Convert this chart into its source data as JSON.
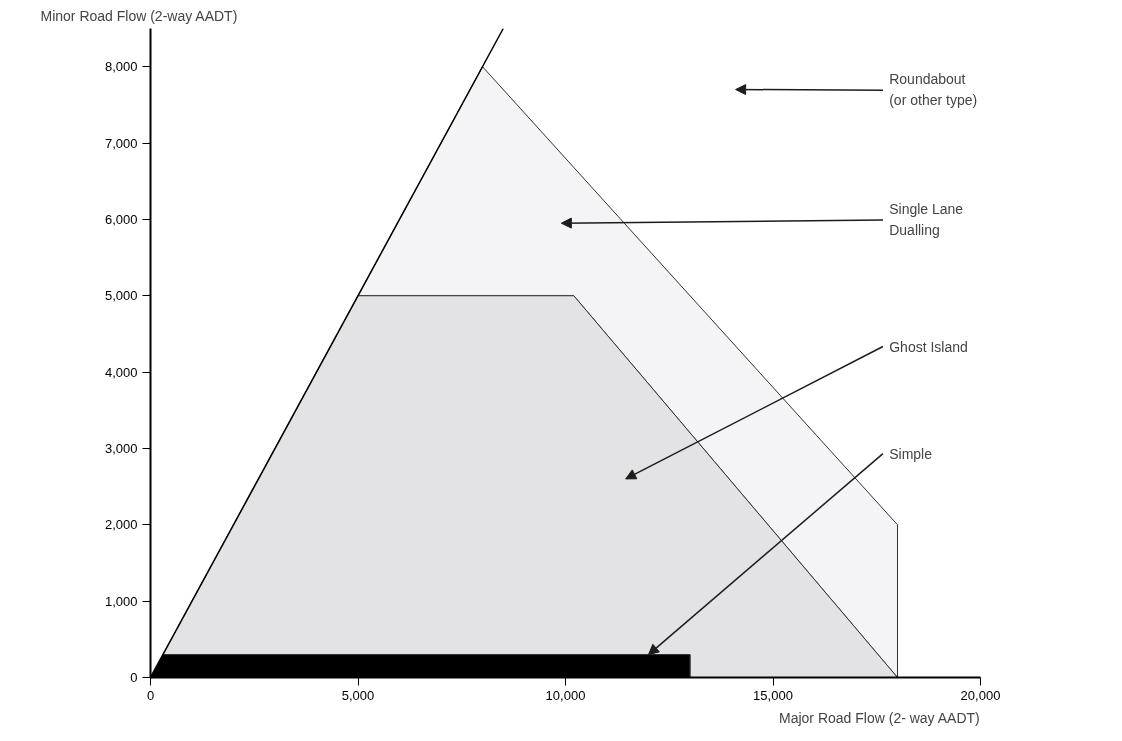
{
  "chart_data": {
    "type": "area",
    "xlabel": "Major Road Flow (2- way AADT)",
    "ylabel": "Minor Road Flow (2-way AADT)",
    "xlim": [
      0,
      20000
    ],
    "ylim": [
      0,
      8500
    ],
    "xticks": [
      0,
      {
        "value": 5000,
        "label": "5,000"
      },
      {
        "value": 10000,
        "label": "10,000"
      },
      {
        "value": 15000,
        "label": "15,000"
      },
      {
        "value": 20000,
        "label": "20,000"
      }
    ],
    "yticks": [
      0,
      {
        "value": 1000,
        "label": "1,000"
      },
      {
        "value": 2000,
        "label": "2,000"
      },
      {
        "value": 3000,
        "label": "3,000"
      },
      {
        "value": 4000,
        "label": "4,000"
      },
      {
        "value": 5000,
        "label": "5,000"
      },
      {
        "value": 6000,
        "label": "6,000"
      },
      {
        "value": 7000,
        "label": "7,000"
      },
      {
        "value": 8000,
        "label": "8,000"
      }
    ],
    "grid": false,
    "series": [
      {
        "color": "#f4f4f6",
        "x": [
          5000,
          8000,
          18000,
          18000,
          10200
        ],
        "values": [
          5000,
          8000,
          2000,
          0,
          5000
        ]
      },
      {
        "color": "#e3e3e5",
        "x": [
          300,
          5000,
          10200,
          18000,
          13000,
          13000
        ],
        "values": [
          300,
          5000,
          5000,
          0,
          0,
          300
        ]
      },
      {
        "color": "#000000",
        "x": [
          0,
          300,
          13000,
          13000
        ],
        "values": [
          0,
          300,
          300,
          0
        ]
      },
      {
        "type": "line",
        "color": "#000000",
        "x": [
          0,
          8500
        ],
        "values": [
          0,
          8500
        ]
      }
    ],
    "annotations": [
      "Roundabout\n(or other type)",
      "Single Lane\nDualling",
      "Ghost Island",
      {
        "text": "Simple",
        "x": 12000,
        "y": 300
      }
    ]
  }
}
